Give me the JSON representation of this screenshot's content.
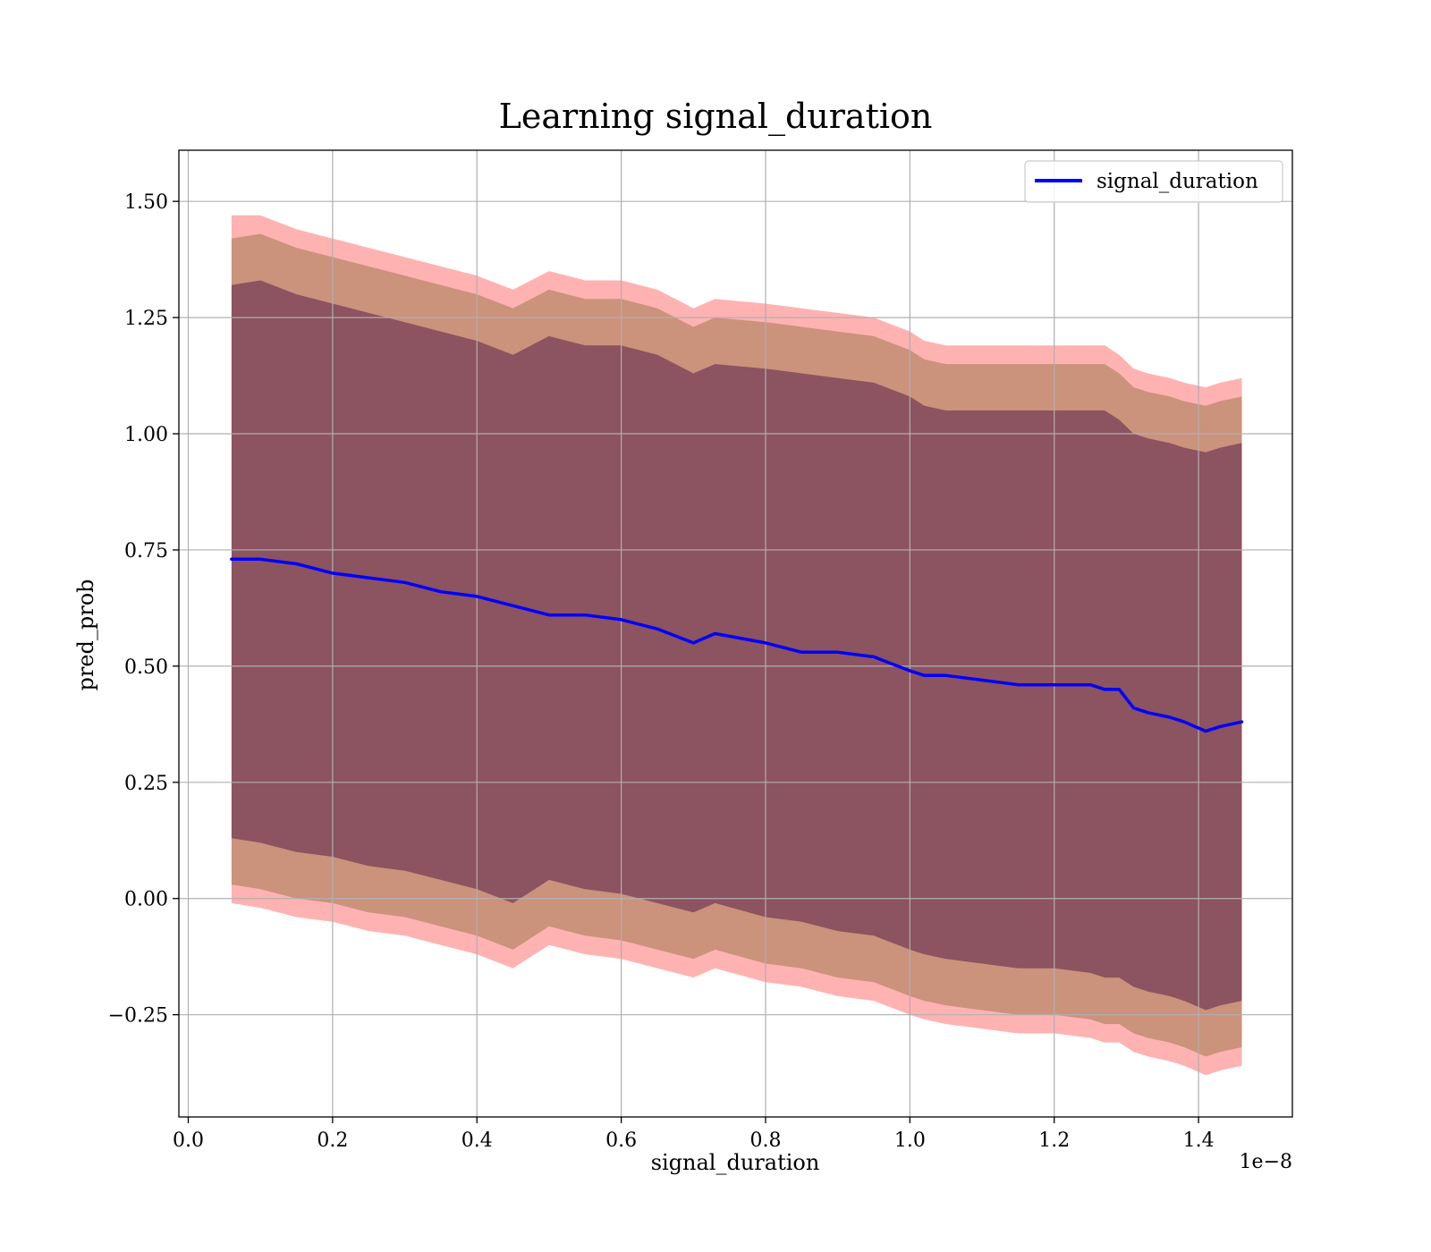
{
  "chart_data": {
    "type": "line",
    "title": "Learning signal_duration",
    "xlabel": "signal_duration",
    "ylabel": "pred_prob",
    "x_offset_label": "1e−8",
    "xlim": [
      -0.013,
      1.53
    ],
    "ylim": [
      -0.47,
      1.61
    ],
    "x_ticks": [
      0.0,
      0.2,
      0.4,
      0.6,
      0.8,
      1.0,
      1.2,
      1.4
    ],
    "x_tick_labels": [
      "0.0",
      "0.2",
      "0.4",
      "0.6",
      "0.8",
      "1.0",
      "1.2",
      "1.4"
    ],
    "y_ticks": [
      -0.25,
      0.0,
      0.25,
      0.5,
      0.75,
      1.0,
      1.25,
      1.5
    ],
    "y_tick_labels": [
      "−0.25",
      "0.00",
      "0.25",
      "0.50",
      "0.75",
      "1.00",
      "1.25",
      "1.50"
    ],
    "grid": true,
    "legend": {
      "placement": "top-right",
      "entries": [
        "signal_duration"
      ]
    },
    "x": [
      0.06,
      0.1,
      0.15,
      0.2,
      0.25,
      0.3,
      0.35,
      0.4,
      0.45,
      0.5,
      0.55,
      0.6,
      0.65,
      0.7,
      0.73,
      0.8,
      0.85,
      0.9,
      0.95,
      1.0,
      1.02,
      1.05,
      1.1,
      1.15,
      1.2,
      1.25,
      1.27,
      1.29,
      1.31,
      1.33,
      1.36,
      1.38,
      1.41,
      1.43,
      1.46
    ],
    "series": [
      {
        "name": "signal_duration",
        "color": "#0000ff",
        "values": [
          0.73,
          0.73,
          0.72,
          0.7,
          0.69,
          0.68,
          0.66,
          0.65,
          0.63,
          0.61,
          0.61,
          0.6,
          0.58,
          0.55,
          0.57,
          0.55,
          0.53,
          0.53,
          0.52,
          0.49,
          0.48,
          0.48,
          0.47,
          0.46,
          0.46,
          0.46,
          0.45,
          0.45,
          0.41,
          0.4,
          0.39,
          0.38,
          0.36,
          0.37,
          0.38
        ]
      }
    ],
    "bands": [
      {
        "color": "#ff0000",
        "opacity": 0.3,
        "upper": [
          1.47,
          1.47,
          1.44,
          1.42,
          1.4,
          1.38,
          1.36,
          1.34,
          1.31,
          1.35,
          1.33,
          1.33,
          1.31,
          1.27,
          1.29,
          1.28,
          1.27,
          1.26,
          1.25,
          1.22,
          1.2,
          1.19,
          1.19,
          1.19,
          1.19,
          1.19,
          1.19,
          1.17,
          1.14,
          1.13,
          1.12,
          1.11,
          1.1,
          1.11,
          1.12
        ],
        "lower": [
          -0.01,
          -0.02,
          -0.04,
          -0.05,
          -0.07,
          -0.08,
          -0.1,
          -0.12,
          -0.15,
          -0.1,
          -0.12,
          -0.13,
          -0.15,
          -0.17,
          -0.15,
          -0.18,
          -0.19,
          -0.21,
          -0.22,
          -0.25,
          -0.26,
          -0.27,
          -0.28,
          -0.29,
          -0.29,
          -0.3,
          -0.31,
          -0.31,
          -0.33,
          -0.34,
          -0.35,
          -0.36,
          -0.38,
          -0.37,
          -0.36
        ]
      },
      {
        "color": "#8b6a3a",
        "opacity": 0.45,
        "upper": [
          1.42,
          1.43,
          1.4,
          1.38,
          1.36,
          1.34,
          1.32,
          1.3,
          1.27,
          1.31,
          1.29,
          1.29,
          1.27,
          1.23,
          1.25,
          1.24,
          1.23,
          1.22,
          1.21,
          1.18,
          1.16,
          1.15,
          1.15,
          1.15,
          1.15,
          1.15,
          1.15,
          1.13,
          1.1,
          1.09,
          1.08,
          1.07,
          1.06,
          1.07,
          1.08
        ],
        "lower": [
          0.03,
          0.02,
          0.0,
          -0.01,
          -0.03,
          -0.04,
          -0.06,
          -0.08,
          -0.11,
          -0.06,
          -0.08,
          -0.09,
          -0.11,
          -0.13,
          -0.11,
          -0.14,
          -0.15,
          -0.17,
          -0.18,
          -0.21,
          -0.22,
          -0.23,
          -0.24,
          -0.25,
          -0.25,
          -0.26,
          -0.27,
          -0.27,
          -0.29,
          -0.3,
          -0.31,
          -0.32,
          -0.34,
          -0.33,
          -0.32
        ]
      },
      {
        "color": "#5a1f48",
        "opacity": 0.55,
        "upper": [
          1.32,
          1.33,
          1.3,
          1.28,
          1.26,
          1.24,
          1.22,
          1.2,
          1.17,
          1.21,
          1.19,
          1.19,
          1.17,
          1.13,
          1.15,
          1.14,
          1.13,
          1.12,
          1.11,
          1.08,
          1.06,
          1.05,
          1.05,
          1.05,
          1.05,
          1.05,
          1.05,
          1.03,
          1.0,
          0.99,
          0.98,
          0.97,
          0.96,
          0.97,
          0.98
        ],
        "lower": [
          0.13,
          0.12,
          0.1,
          0.09,
          0.07,
          0.06,
          0.04,
          0.02,
          -0.01,
          0.04,
          0.02,
          0.01,
          -0.01,
          -0.03,
          -0.01,
          -0.04,
          -0.05,
          -0.07,
          -0.08,
          -0.11,
          -0.12,
          -0.13,
          -0.14,
          -0.15,
          -0.15,
          -0.16,
          -0.17,
          -0.17,
          -0.19,
          -0.2,
          -0.21,
          -0.22,
          -0.24,
          -0.23,
          -0.22
        ]
      }
    ]
  }
}
